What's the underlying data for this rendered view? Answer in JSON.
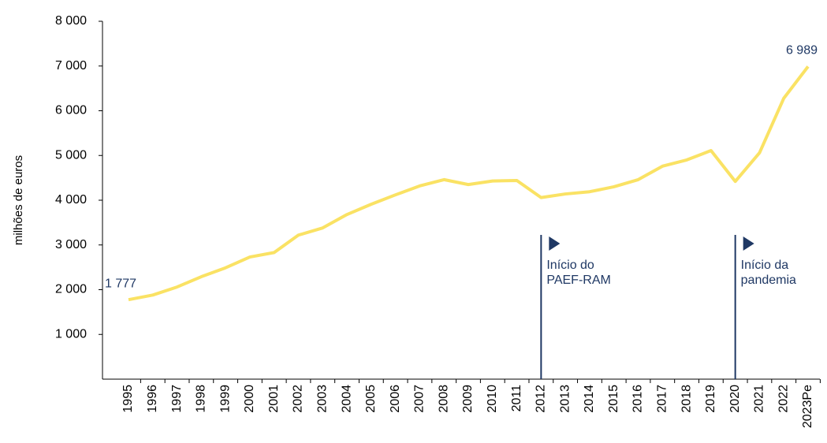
{
  "chart_data": {
    "type": "line",
    "y_label": "milhões de euros",
    "categories": [
      "1995",
      "1996",
      "1997",
      "1998",
      "1999",
      "2000",
      "2001",
      "2002",
      "2003",
      "2004",
      "2005",
      "2006",
      "2007",
      "2008",
      "2009",
      "2010",
      "2011",
      "2012",
      "2013",
      "2014",
      "2015",
      "2016",
      "2017",
      "2018",
      "2019",
      "2020",
      "2021",
      "2022",
      "2023Pe"
    ],
    "series": [
      {
        "name": "milhões de euros",
        "color": "#fae264",
        "values": [
          1777,
          1880,
          2060,
          2290,
          2490,
          2730,
          2830,
          3220,
          3380,
          3680,
          3910,
          4120,
          4320,
          4460,
          4350,
          4430,
          4440,
          4060,
          4140,
          4190,
          4300,
          4460,
          4760,
          4900,
          5110,
          4420,
          5060,
          6280,
          6989
        ],
        "value_labels": [
          "1 777",
          null,
          null,
          null,
          null,
          null,
          null,
          null,
          null,
          null,
          null,
          null,
          null,
          null,
          null,
          null,
          null,
          null,
          null,
          null,
          null,
          null,
          null,
          null,
          null,
          null,
          null,
          null,
          "6 989"
        ]
      }
    ],
    "ylim": [
      0,
      8000
    ],
    "yticks": [
      {
        "value": 1000,
        "label": "1 000"
      },
      {
        "value": 2000,
        "label": "2 000"
      },
      {
        "value": 3000,
        "label": "3 000"
      },
      {
        "value": 4000,
        "label": "4 000"
      },
      {
        "value": 5000,
        "label": "5 000"
      },
      {
        "value": 6000,
        "label": "6 000"
      },
      {
        "value": 7000,
        "label": "7 000"
      },
      {
        "value": 8000,
        "label": "8 000"
      }
    ],
    "annotations": [
      {
        "x": "2012",
        "text": [
          "Início do",
          "PAEF-RAM"
        ]
      },
      {
        "x": "2020",
        "text": [
          "Início da",
          "pandemia"
        ]
      }
    ]
  }
}
